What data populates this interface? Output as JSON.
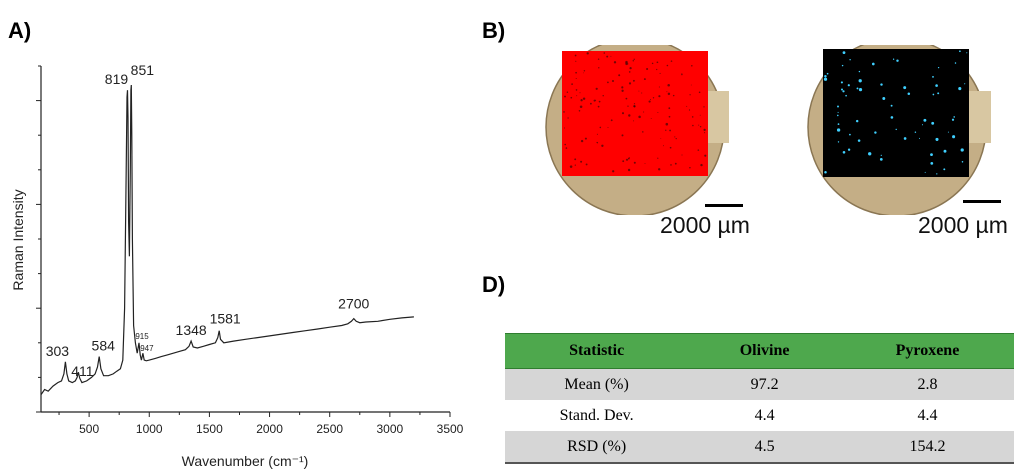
{
  "panels": {
    "a_label": "A)",
    "b_label": "B)",
    "d_label": "D)"
  },
  "chart_data": {
    "type": "line",
    "xlabel": "Wavenumber (cm⁻¹)",
    "ylabel": "Raman Intensity",
    "xlim": [
      100,
      3500
    ],
    "ylim": [
      0,
      1
    ],
    "x_ticks": [
      500,
      1000,
      1500,
      2000,
      2500,
      3000,
      3500
    ],
    "grid": false,
    "series": [
      {
        "x": [
          100,
          130,
          160,
          200,
          240,
          270,
          290,
          303,
          315,
          330,
          360,
          385,
          400,
          411,
          422,
          440,
          480,
          520,
          550,
          570,
          584,
          598,
          620,
          660,
          700,
          730,
          760,
          780,
          795,
          808,
          815,
          819,
          823,
          828,
          835,
          842,
          847,
          851,
          855,
          860,
          870,
          885,
          900,
          915,
          925,
          935,
          947,
          958,
          975,
          1000,
          1050,
          1100,
          1150,
          1200,
          1250,
          1300,
          1330,
          1348,
          1365,
          1400,
          1450,
          1500,
          1550,
          1570,
          1581,
          1592,
          1620,
          1700,
          1800,
          1900,
          2000,
          2100,
          2200,
          2300,
          2400,
          2500,
          2600,
          2650,
          2680,
          2700,
          2720,
          2750,
          2800,
          2900,
          3000,
          3100,
          3200
        ],
        "values": [
          0.05,
          0.065,
          0.06,
          0.075,
          0.085,
          0.09,
          0.11,
          0.145,
          0.11,
          0.09,
          0.085,
          0.09,
          0.1,
          0.115,
          0.098,
          0.085,
          0.09,
          0.1,
          0.11,
          0.13,
          0.16,
          0.125,
          0.105,
          0.105,
          0.11,
          0.118,
          0.125,
          0.15,
          0.3,
          0.7,
          0.91,
          0.93,
          0.85,
          0.55,
          0.45,
          0.7,
          0.93,
          0.945,
          0.8,
          0.5,
          0.25,
          0.2,
          0.17,
          0.2,
          0.165,
          0.15,
          0.17,
          0.15,
          0.148,
          0.15,
          0.155,
          0.16,
          0.165,
          0.17,
          0.175,
          0.18,
          0.19,
          0.205,
          0.188,
          0.185,
          0.19,
          0.195,
          0.2,
          0.215,
          0.235,
          0.21,
          0.2,
          0.205,
          0.21,
          0.215,
          0.22,
          0.225,
          0.23,
          0.235,
          0.24,
          0.245,
          0.25,
          0.255,
          0.262,
          0.27,
          0.262,
          0.258,
          0.26,
          0.262,
          0.268,
          0.272,
          0.275
        ]
      }
    ],
    "annotations": [
      {
        "text": "303",
        "x": 303,
        "y": 0.145
      },
      {
        "text": "411",
        "x": 411,
        "y": 0.115
      },
      {
        "text": "584",
        "x": 584,
        "y": 0.16
      },
      {
        "text": "819",
        "x": 819,
        "y": 0.93
      },
      {
        "text": "851",
        "x": 851,
        "y": 0.945
      },
      {
        "text": "915",
        "x": 915,
        "y": 0.2
      },
      {
        "text": "947",
        "x": 947,
        "y": 0.17
      },
      {
        "text": "1348",
        "x": 1348,
        "y": 0.205
      },
      {
        "text": "1581",
        "x": 1581,
        "y": 0.235
      },
      {
        "text": "2700",
        "x": 2700,
        "y": 0.27
      }
    ]
  },
  "maps": {
    "left_overlay_color": "#ff0000",
    "right_overlay_color": "#000000",
    "right_dot_color": "#3fd0ff",
    "disc_color": "#c4ae86",
    "left_scale": "2000 µm",
    "right_scale": "2000 µm"
  },
  "table": {
    "header_color": "#4ea84d",
    "headers": [
      "Statistic",
      "Olivine",
      "Pyroxene"
    ],
    "rows": [
      [
        "Mean (%)",
        "97.2",
        "2.8"
      ],
      [
        "Stand. Dev.",
        "4.4",
        "4.4"
      ],
      [
        "RSD (%)",
        "4.5",
        "154.2"
      ]
    ]
  }
}
